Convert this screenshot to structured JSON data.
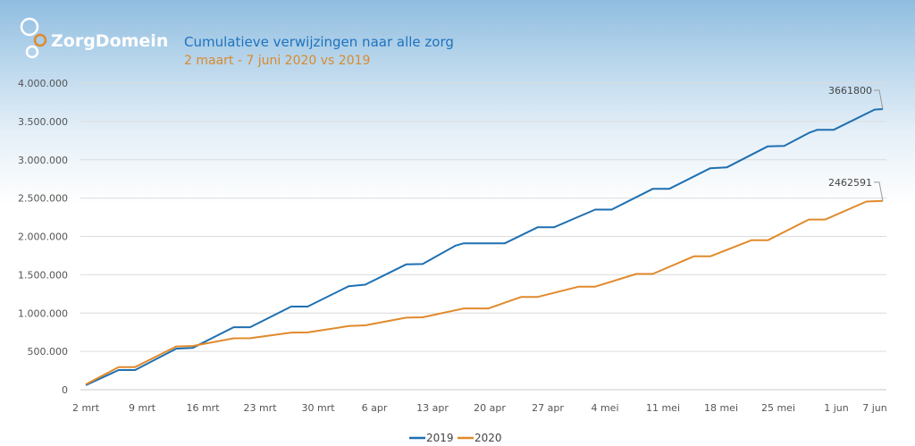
{
  "brand": {
    "name": "ZorgDomein"
  },
  "chart_data": {
    "type": "line",
    "title": "Cumulatieve verwijzingen naar alle zorg",
    "subtitle": "2 maart - 7 juni 2020 vs 2019",
    "xlabel": "",
    "ylabel": "",
    "xlim": [
      "03-02",
      "06-07"
    ],
    "ylim": [
      0,
      4000000
    ],
    "grid": true,
    "legend_placement": "bottom",
    "x_ticks": [
      "2 mrt",
      "9 mrt",
      "16 mrt",
      "23 mrt",
      "30 mrt",
      "6 apr",
      "13 apr",
      "20 apr",
      "27 apr",
      "4 mei",
      "11 mei",
      "18 mei",
      "25 mei",
      "1 jun",
      "7 jun"
    ],
    "y_ticks": [
      "0",
      "500.000",
      "1.000.000",
      "1.500.000",
      "2.000.000",
      "2.500.000",
      "3.000.000",
      "3.500.000",
      "4.000.000"
    ],
    "series": [
      {
        "name": "2019",
        "color": "#1f6fb0",
        "points": [
          [
            "03-02",
            58000
          ],
          [
            "03-06",
            257000
          ],
          [
            "03-08",
            257000
          ],
          [
            "03-13",
            535000
          ],
          [
            "03-15",
            545000
          ],
          [
            "03-20",
            815000
          ],
          [
            "03-22",
            815000
          ],
          [
            "03-27",
            1085000
          ],
          [
            "03-29",
            1085000
          ],
          [
            "04-03",
            1350000
          ],
          [
            "04-05",
            1370000
          ],
          [
            "04-10",
            1635000
          ],
          [
            "04-12",
            1640000
          ],
          [
            "04-16",
            1880000
          ],
          [
            "04-17",
            1910000
          ],
          [
            "04-22",
            1910000
          ],
          [
            "04-26",
            2120000
          ],
          [
            "04-28",
            2120000
          ],
          [
            "05-03",
            2350000
          ],
          [
            "05-05",
            2350000
          ],
          [
            "05-10",
            2620000
          ],
          [
            "05-12",
            2620000
          ],
          [
            "05-17",
            2890000
          ],
          [
            "05-19",
            2900000
          ],
          [
            "05-24",
            3175000
          ],
          [
            "05-26",
            3180000
          ],
          [
            "05-29",
            3350000
          ],
          [
            "05-30",
            3390000
          ],
          [
            "06-01",
            3390000
          ],
          [
            "06-06",
            3655000
          ],
          [
            "06-07",
            3661800
          ]
        ],
        "end_label": "3661800"
      },
      {
        "name": "2020",
        "color": "#e08a2c",
        "points": [
          [
            "03-02",
            70000
          ],
          [
            "03-06",
            295000
          ],
          [
            "03-08",
            295000
          ],
          [
            "03-13",
            565000
          ],
          [
            "03-15",
            570000
          ],
          [
            "03-20",
            670000
          ],
          [
            "03-22",
            672000
          ],
          [
            "03-27",
            745000
          ],
          [
            "03-29",
            748000
          ],
          [
            "04-03",
            830000
          ],
          [
            "04-05",
            840000
          ],
          [
            "04-10",
            940000
          ],
          [
            "04-12",
            945000
          ],
          [
            "04-17",
            1060000
          ],
          [
            "04-20",
            1060000
          ],
          [
            "04-24",
            1210000
          ],
          [
            "04-26",
            1210000
          ],
          [
            "05-01",
            1345000
          ],
          [
            "05-03",
            1345000
          ],
          [
            "05-08",
            1510000
          ],
          [
            "05-10",
            1510000
          ],
          [
            "05-15",
            1740000
          ],
          [
            "05-17",
            1740000
          ],
          [
            "05-22",
            1950000
          ],
          [
            "05-24",
            1950000
          ],
          [
            "05-29",
            2220000
          ],
          [
            "05-31",
            2220000
          ],
          [
            "06-05",
            2455000
          ],
          [
            "06-07",
            2462591
          ]
        ],
        "end_label": "2462591"
      }
    ]
  }
}
